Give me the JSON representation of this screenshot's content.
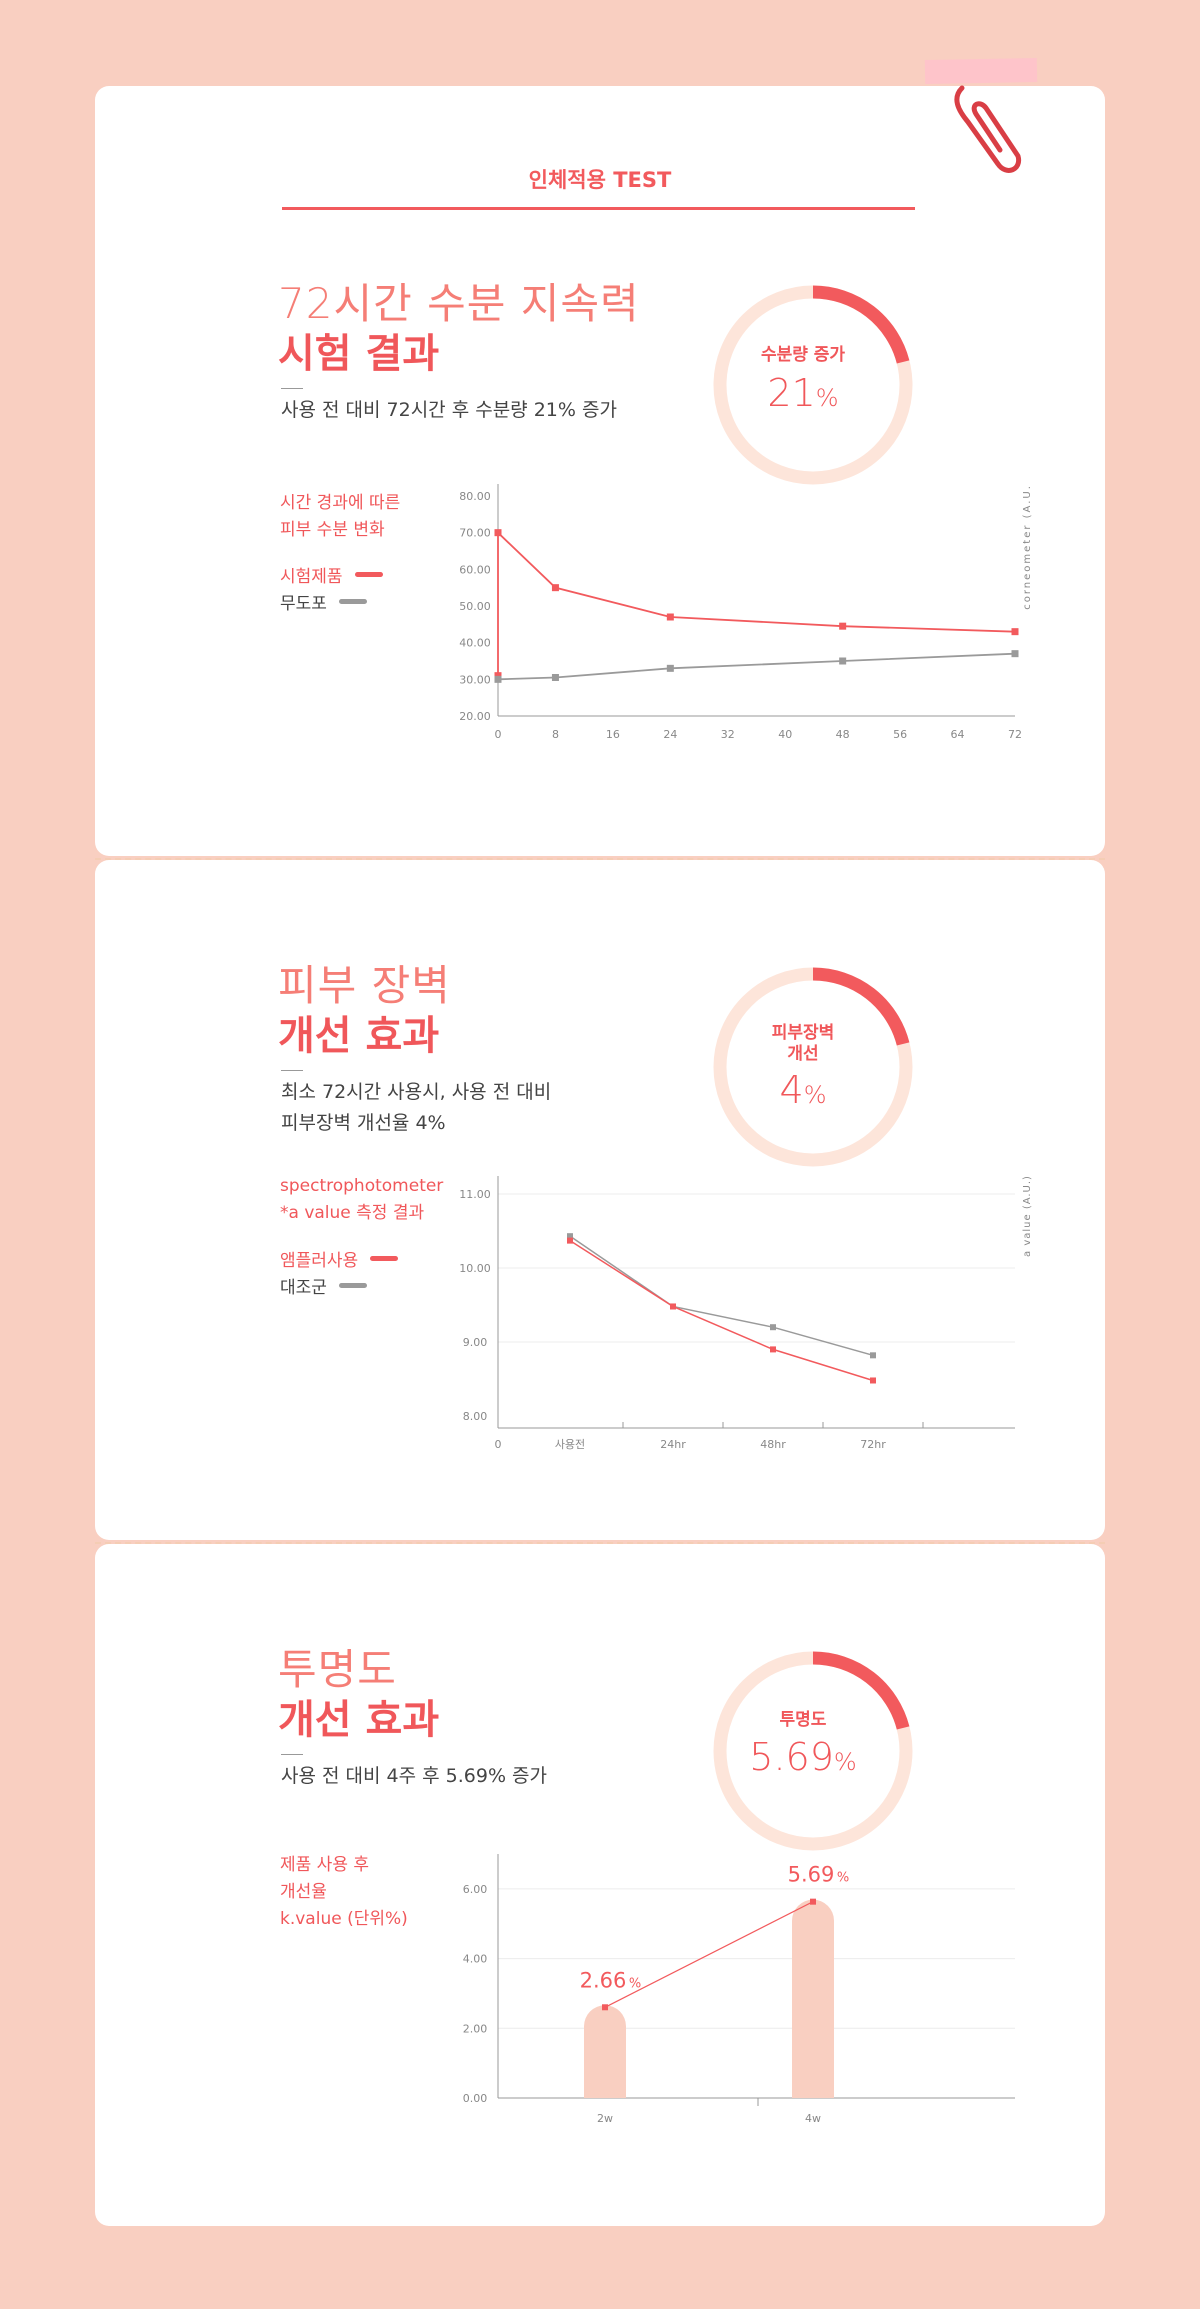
{
  "header": {
    "title": "인체적용 TEST"
  },
  "sections": [
    {
      "title_light": "72시간 수분 지속력",
      "title_bold": "시험 결과",
      "desc": [
        "사용 전 대비 72시간 후 수분량 21% 증가"
      ],
      "ring": {
        "label": [
          "수분량 증가"
        ],
        "value": "21",
        "unit": "%",
        "fill": 0.21
      },
      "side_text": [
        "시간 경과에 따른",
        "피부 수분 변화"
      ],
      "legend": [
        {
          "label": "시험제품",
          "color": "#f25a5d"
        },
        {
          "label": "무도포",
          "color": "#9a9a9a"
        }
      ]
    },
    {
      "title_light": "피부 장벽",
      "title_bold": "개선 효과",
      "desc": [
        "최소 72시간 사용시, 사용 전 대비",
        "피부장벽 개선율 4%"
      ],
      "ring": {
        "label": [
          "피부장벽",
          "개선"
        ],
        "value": "4",
        "unit": "%",
        "fill": 0.21
      },
      "side_text": [
        "spectrophotometer",
        "*a value 측정 결과"
      ],
      "legend": [
        {
          "label": "앰플러사용",
          "color": "#f25a5d"
        },
        {
          "label": "대조군",
          "color": "#9a9a9a"
        }
      ]
    },
    {
      "title_light": "투명도",
      "title_bold": "개선 효과",
      "desc": [
        "사용 전 대비 4주 후 5.69% 증가"
      ],
      "ring": {
        "label": [
          "투명도"
        ],
        "value": "5.69",
        "unit": "%",
        "fill": 0.21
      },
      "side_text": [
        "제품 사용 후",
        "개선율",
        "k.value (단위%)"
      ],
      "legend": []
    }
  ],
  "colors": {
    "accent": "#f25a5d",
    "ring_track": "#fde5da",
    "gray": "#9a9a9a",
    "bar": "#f9cfc1",
    "background": "#f9cfc1"
  },
  "chart_data": [
    {
      "type": "line",
      "ylabel": "corneometer (A.U.)",
      "ylim": [
        20,
        80
      ],
      "yticks": [
        "80.00",
        "70.00",
        "60.00",
        "50.00",
        "40.00",
        "30.00",
        "20.00"
      ],
      "xlim": [
        0,
        72
      ],
      "xticks": [
        "0",
        "8",
        "16",
        "24",
        "32",
        "40",
        "48",
        "56",
        "64",
        "72"
      ],
      "grid": false,
      "series": [
        {
          "name": "시험제품",
          "color": "#f25a5d",
          "x": [
            0,
            0,
            8,
            24,
            48,
            72
          ],
          "y": [
            31,
            70,
            55,
            47,
            44.5,
            43
          ]
        },
        {
          "name": "무도포",
          "color": "#9a9a9a",
          "x": [
            0,
            8,
            24,
            48,
            72
          ],
          "y": [
            30,
            30.5,
            33,
            35,
            37
          ]
        }
      ]
    },
    {
      "type": "line",
      "ylabel": "a value (A.U.)",
      "ylim": [
        8,
        11
      ],
      "yticks": [
        "11.00",
        "10.00",
        "9.00",
        "8.00"
      ],
      "categories": [
        "사용전",
        "24hr",
        "48hr",
        "72hr"
      ],
      "origin_label": "0",
      "grid": true,
      "series": [
        {
          "name": "앰플러사용",
          "color": "#f25a5d",
          "values": [
            10.37,
            9.48,
            8.9,
            8.48
          ]
        },
        {
          "name": "대조군",
          "color": "#9a9a9a",
          "values": [
            10.43,
            9.48,
            9.2,
            8.82
          ]
        }
      ]
    },
    {
      "type": "bar",
      "ylim": [
        0,
        7
      ],
      "yticks": [
        "6.00",
        "4.00",
        "2.00",
        "0.00"
      ],
      "categories": [
        "2w",
        "4w"
      ],
      "values": [
        2.66,
        5.69
      ],
      "data_labels": [
        "2.66",
        "5.69"
      ],
      "label_unit": "%",
      "grid": true
    }
  ]
}
